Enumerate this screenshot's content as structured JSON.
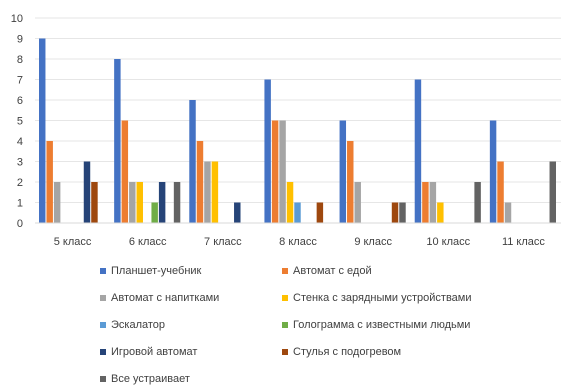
{
  "chart_data": {
    "type": "bar",
    "title": "",
    "xlabel": "",
    "ylabel": "",
    "ylim": [
      0,
      10
    ],
    "yticks": [
      "0",
      "1",
      "2",
      "3",
      "4",
      "5",
      "6",
      "7",
      "8",
      "9",
      "10"
    ],
    "grid": true,
    "legend_position": "bottom",
    "categories": [
      "5 класс",
      "6 класс",
      "7 класс",
      "8 класс",
      "9 класс",
      "10 класс",
      "11 класс"
    ],
    "series": [
      {
        "name": "Планшет-учебник",
        "color": "#4472C4",
        "values": [
          9,
          8,
          6,
          7,
          5,
          7,
          5
        ]
      },
      {
        "name": "Автомат с едой",
        "color": "#ED7D31",
        "values": [
          4,
          5,
          4,
          5,
          4,
          2,
          3
        ]
      },
      {
        "name": "Автомат с напитками",
        "color": "#A5A5A5",
        "values": [
          2,
          2,
          3,
          5,
          2,
          2,
          1
        ]
      },
      {
        "name": "Стенка с зарядными устройствами",
        "color": "#FFC000",
        "values": [
          0,
          2,
          3,
          2,
          0,
          1,
          0
        ]
      },
      {
        "name": "Эскалатор",
        "color": "#5B9BD5",
        "values": [
          0,
          0,
          0,
          1,
          0,
          0,
          0
        ]
      },
      {
        "name": "Голограмма с известными людьми",
        "color": "#70AD47",
        "values": [
          0,
          1,
          0,
          0,
          0,
          0,
          0
        ]
      },
      {
        "name": "Игровой автомат",
        "color": "#264478",
        "values": [
          3,
          2,
          1,
          0,
          0,
          0,
          0
        ]
      },
      {
        "name": "Стулья с подогревом",
        "color": "#9E480E",
        "values": [
          2,
          0,
          0,
          1,
          1,
          0,
          0
        ]
      },
      {
        "name": "Все устраивает",
        "color": "#636363",
        "values": [
          0,
          2,
          0,
          0,
          1,
          2,
          3
        ]
      }
    ]
  }
}
